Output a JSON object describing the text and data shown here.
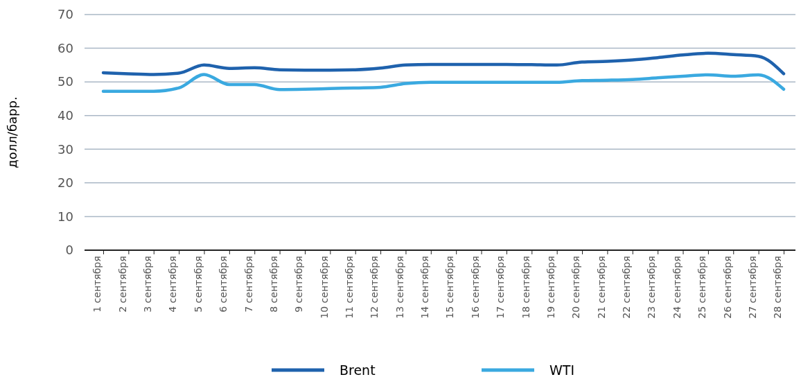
{
  "chart_data": {
    "type": "line",
    "ylabel": "долл/барр.",
    "categories": [
      "1 сентября",
      "2 сентября",
      "3 сентября",
      "4 сентября",
      "5 сентября",
      "6 сентября",
      "7 сентября",
      "8 сентября",
      "9 сентября",
      "10 сентября",
      "11 сентября",
      "12 сентября",
      "13 сентября",
      "14 сентября",
      "15 сентября",
      "16 сентября",
      "17 сентября",
      "18 сентября",
      "19 сентября",
      "20 сентября",
      "21 сентября",
      "22 сентября",
      "23 сентября",
      "24 сентября",
      "25 сентября",
      "26 сентября",
      "27 сентября",
      "28 сентября"
    ],
    "series": [
      {
        "name": "Brent",
        "color": "#1f62ad",
        "values": [
          52.7,
          52.4,
          52.2,
          52.6,
          55,
          54,
          54.2,
          53.6,
          53.5,
          53.5,
          53.6,
          54.1,
          55,
          55.2,
          55.2,
          55.2,
          55.2,
          55.1,
          55,
          55.9,
          56.1,
          56.5,
          57.2,
          58,
          58.5,
          58.1,
          57.6,
          52.4
        ]
      },
      {
        "name": "WTI",
        "color": "#3aa9e0",
        "values": [
          47.2,
          47.2,
          47.2,
          48.2,
          52.2,
          49.2,
          49.2,
          47.7,
          47.8,
          48,
          48.2,
          48.4,
          49.5,
          49.9,
          49.9,
          49.9,
          49.9,
          49.9,
          49.9,
          50.4,
          50.5,
          50.7,
          51.2,
          51.7,
          52.1,
          51.7,
          52.1,
          47.8
        ]
      }
    ],
    "ylim": [
      0,
      70
    ],
    "yticks": [
      0,
      10,
      20,
      30,
      40,
      50,
      60,
      70
    ],
    "grid": "y",
    "legend": "bottom",
    "marker": "none",
    "line_style": "solid"
  }
}
